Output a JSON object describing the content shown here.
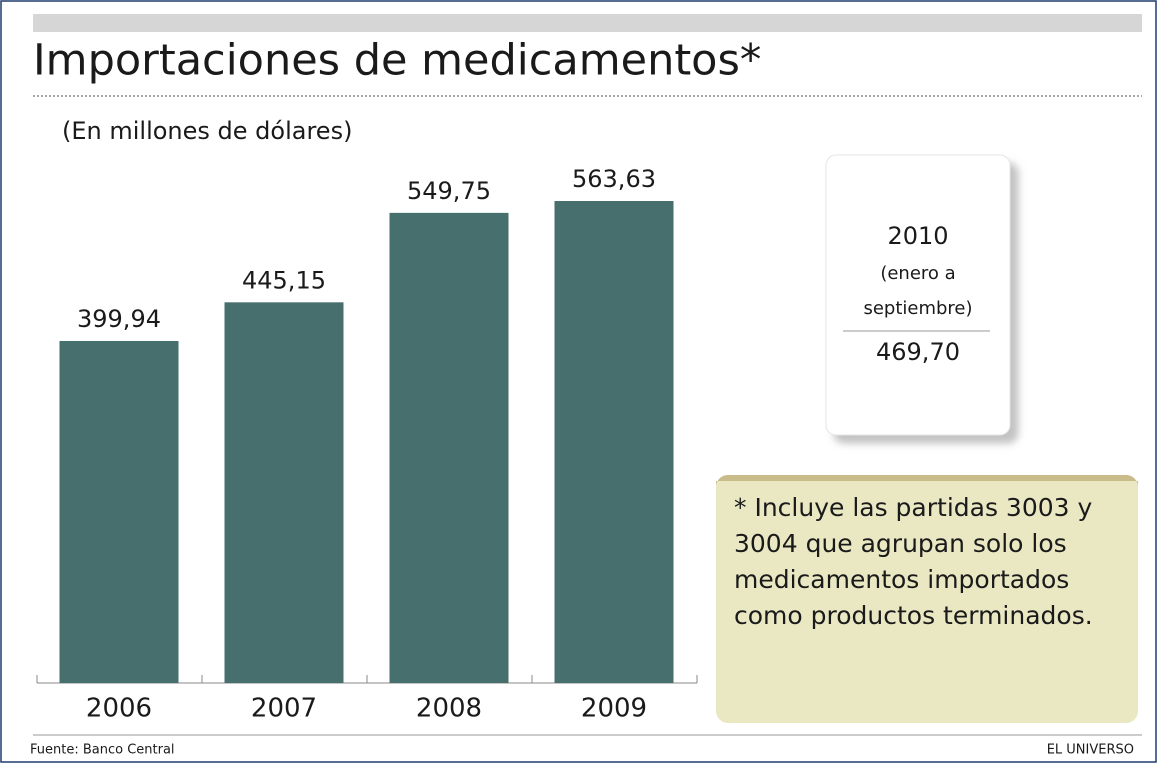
{
  "chart_data": {
    "type": "bar",
    "title": "Importaciones de medicamentos*",
    "subtitle": "(En millones de dólares)",
    "categories": [
      "2006",
      "2007",
      "2008",
      "2009"
    ],
    "values": [
      399.94,
      445.15,
      549.75,
      563.63
    ],
    "value_labels": [
      "399,94",
      "445,15",
      "549,75",
      "563,63"
    ],
    "color": "#476f6d",
    "box": {
      "year": "2010",
      "period": [
        "(enero a",
        "septiembre)"
      ],
      "value": "469,70"
    },
    "note": [
      "* Incluye las partidas 3003 y",
      "3004 que agrupan solo los",
      "medicamentos importados",
      "como productos terminados."
    ],
    "source": "Fuente: Banco Central",
    "brand": "EL UNIVERSO"
  }
}
